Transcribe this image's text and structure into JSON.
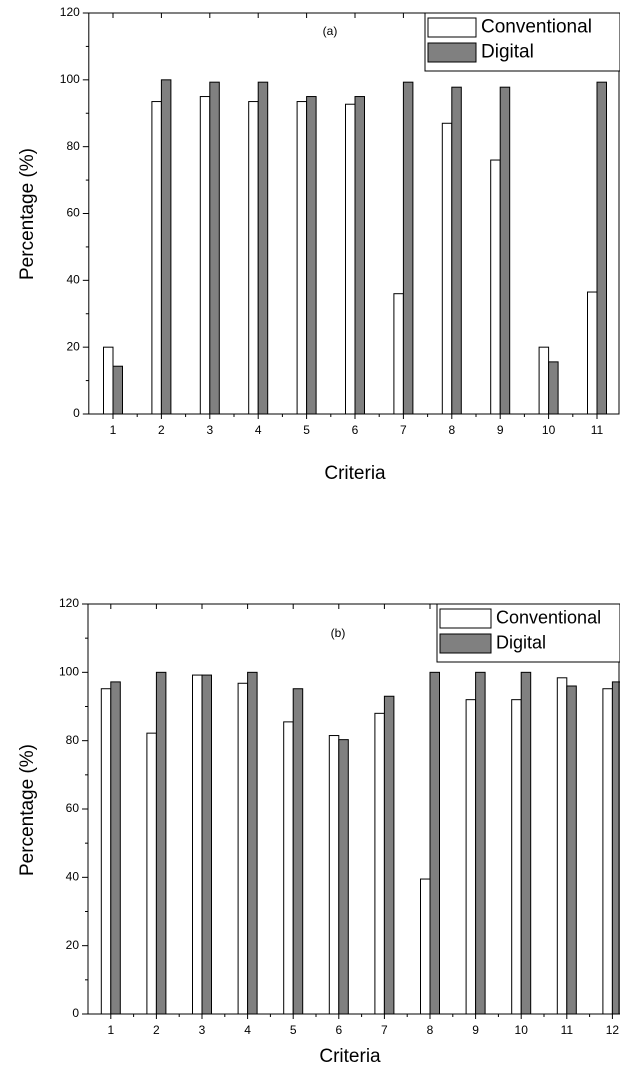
{
  "chart_data": [
    {
      "type": "bar",
      "annotation": "(a)",
      "ylabel": "Percentage (%)",
      "xlabel": "Criteria",
      "categories": [
        "1",
        "2",
        "3",
        "4",
        "5",
        "6",
        "7",
        "8",
        "9",
        "10",
        "11"
      ],
      "series": [
        {
          "name": "Conventional",
          "color": "#ffffff",
          "values": [
            20,
            93.5,
            95,
            93.5,
            93.5,
            92.7,
            36,
            87,
            76,
            20,
            36.5
          ]
        },
        {
          "name": "Digital",
          "color": "#808080",
          "values": [
            14.3,
            100,
            99.3,
            99.3,
            95,
            95,
            99.3,
            97.8,
            97.8,
            15.6,
            99.3
          ]
        }
      ],
      "ylim": [
        0,
        120
      ],
      "yticks": [
        0,
        20,
        40,
        60,
        80,
        100,
        120
      ],
      "legend": "upper right"
    },
    {
      "type": "bar",
      "annotation": "(b)",
      "ylabel": "Percentage (%)",
      "xlabel": "Criteria",
      "categories": [
        "1",
        "2",
        "3",
        "4",
        "5",
        "6",
        "7",
        "8",
        "9",
        "10",
        "11",
        "12"
      ],
      "series": [
        {
          "name": "Conventional",
          "color": "#ffffff",
          "values": [
            95.2,
            82.2,
            99.2,
            96.8,
            85.5,
            81.5,
            88,
            39.5,
            92,
            92,
            98.4,
            95.2
          ]
        },
        {
          "name": "Digital",
          "color": "#808080",
          "values": [
            97.2,
            100,
            99.2,
            100,
            95.2,
            80.3,
            93,
            100,
            100,
            100,
            96,
            97.2
          ]
        }
      ],
      "ylim": [
        0,
        120
      ],
      "yticks": [
        0,
        20,
        40,
        60,
        80,
        100,
        120
      ],
      "legend": "upper right"
    }
  ]
}
